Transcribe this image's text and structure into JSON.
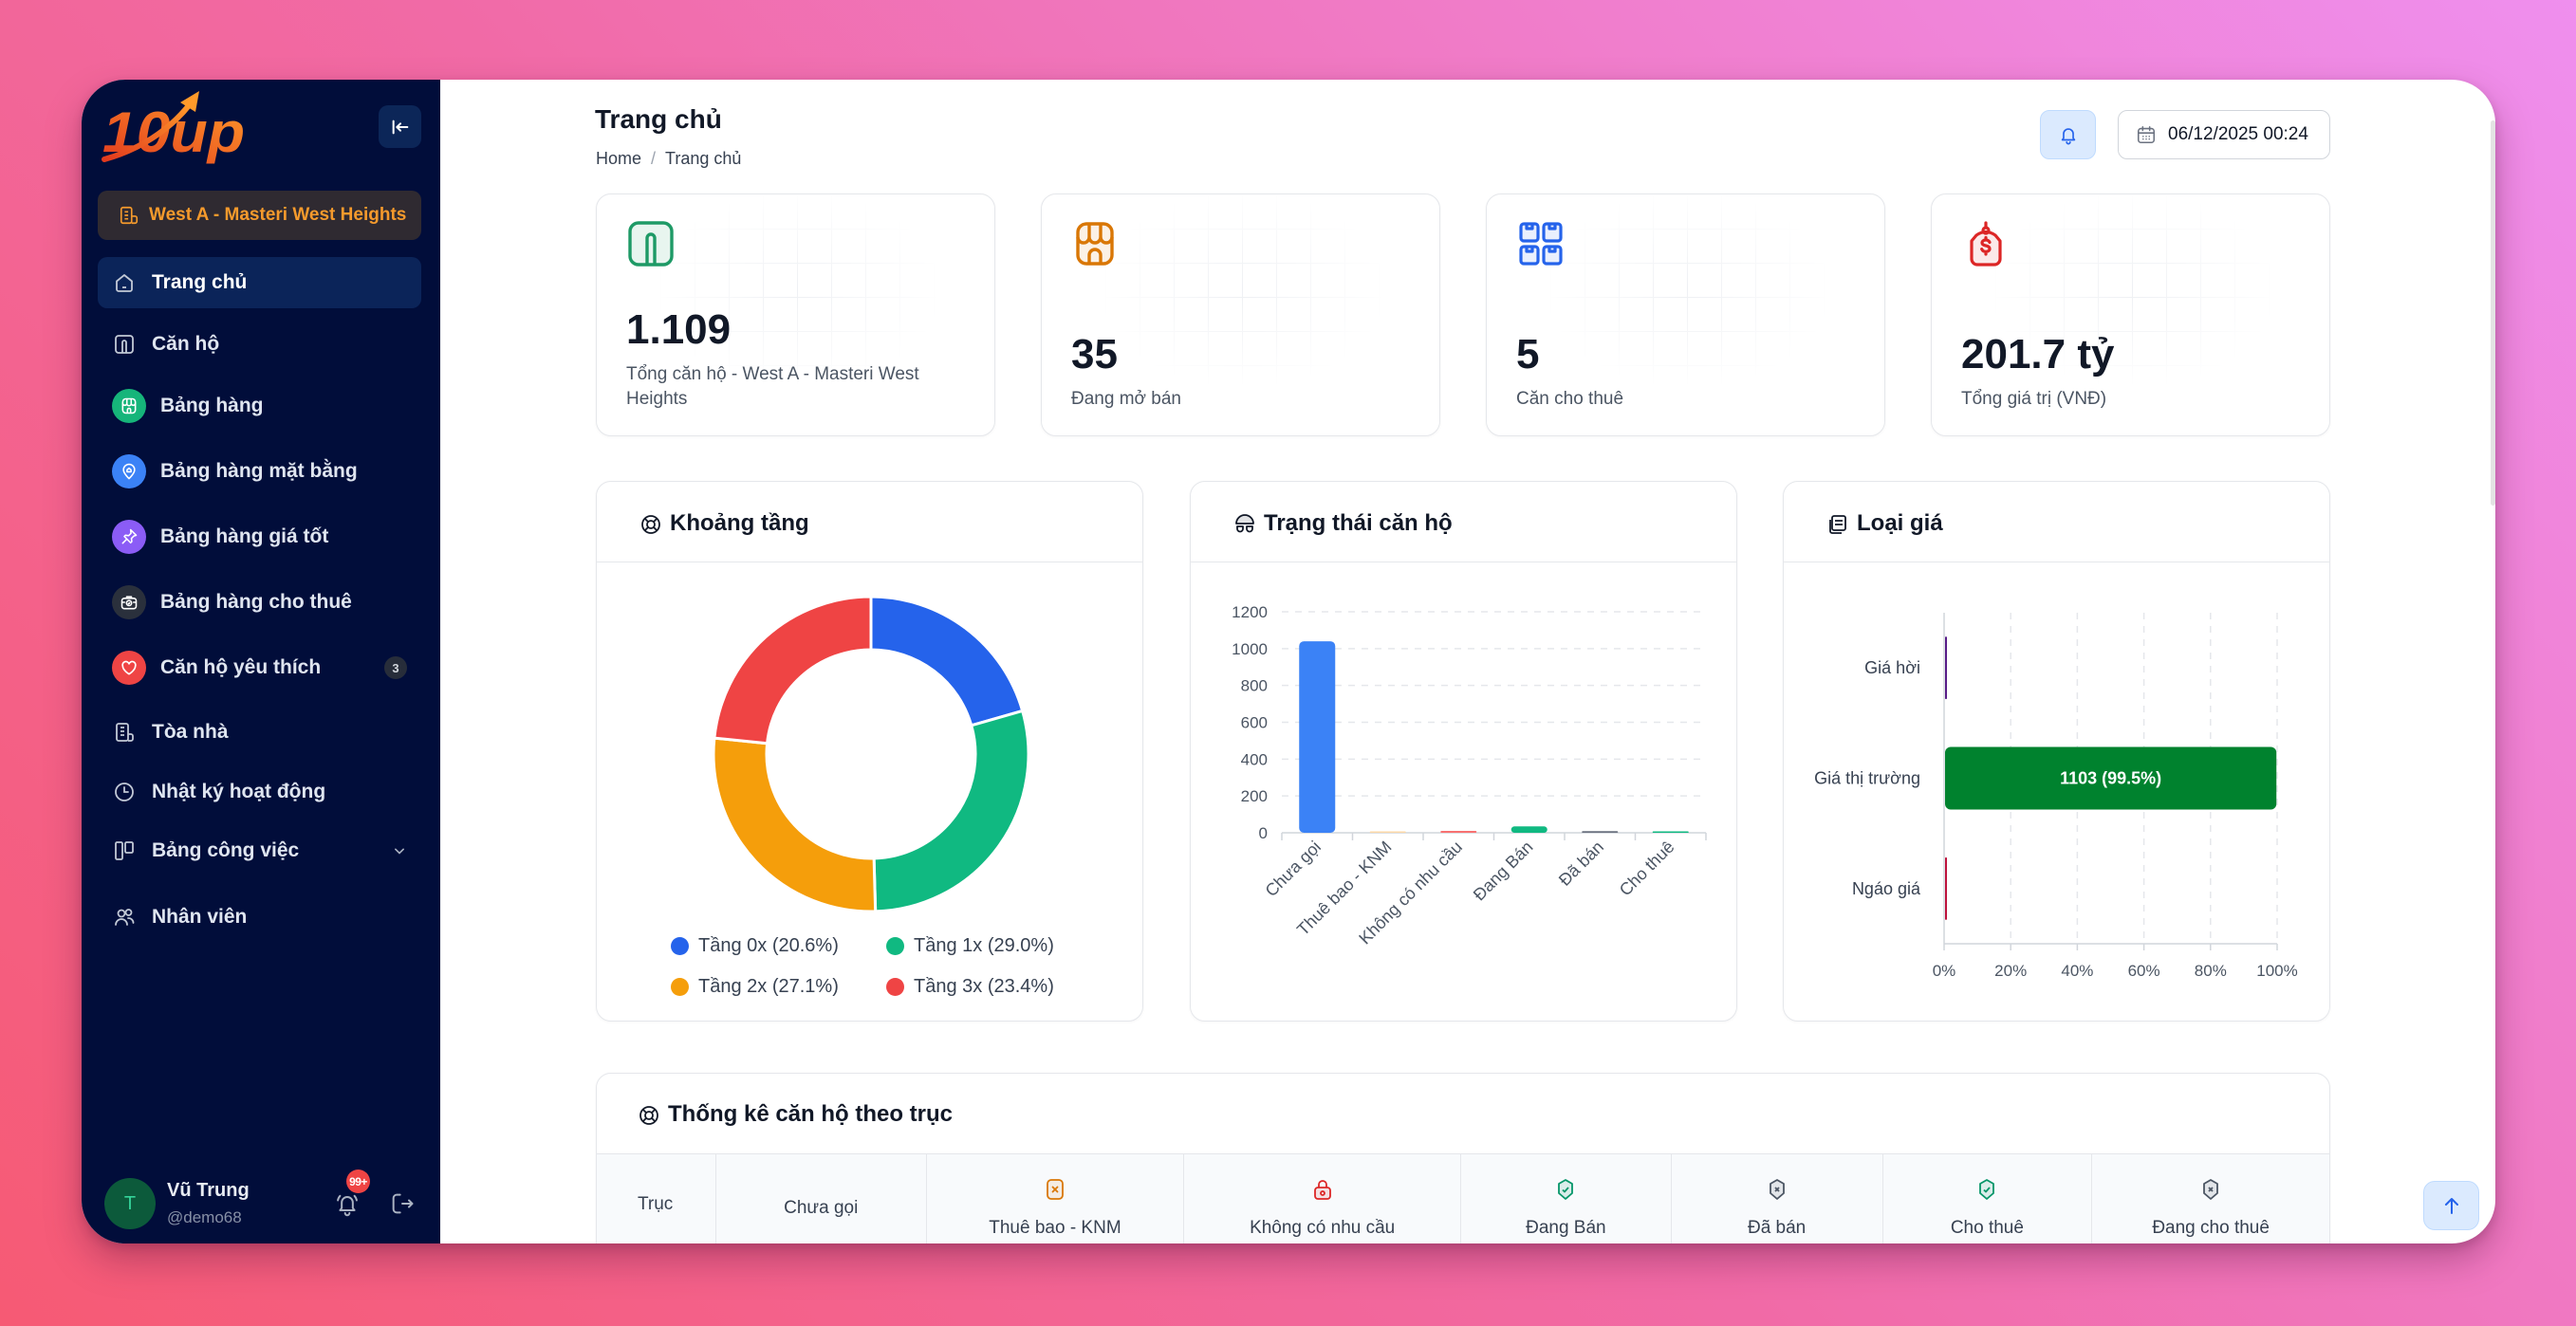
{
  "brand": {
    "logo_text": "10up"
  },
  "sidebar": {
    "project_label": "West A - Masteri West Heights",
    "items": [
      {
        "label": "Trang chủ",
        "icon": "home-icon",
        "active": true
      },
      {
        "label": "Căn hộ",
        "icon": "apartment-icon"
      },
      {
        "label": "Bảng hàng",
        "icon": "storefront-icon",
        "color": "#16b57a"
      },
      {
        "label": "Bảng hàng mặt bằng",
        "icon": "map-pin-home-icon",
        "color": "#3b82f6"
      },
      {
        "label": "Bảng hàng giá tốt",
        "icon": "pushpin-icon",
        "color": "#8b5cf6"
      },
      {
        "label": "Bảng hàng cho thuê",
        "icon": "briefcase-check-icon",
        "color": "#2a303c"
      },
      {
        "label": "Căn hộ yêu thích",
        "icon": "heart-icon",
        "color": "#ef4444",
        "badge": "3"
      },
      {
        "label": "Tòa nhà",
        "icon": "building-icon"
      },
      {
        "label": "Nhật ký hoạt động",
        "icon": "clock-icon"
      },
      {
        "label": "Bảng công việc",
        "icon": "kanban-icon",
        "expandable": true
      },
      {
        "label": "Nhân viên",
        "icon": "users-icon"
      }
    ],
    "user": {
      "initial": "T",
      "name": "Vũ Trung",
      "handle": "@demo68",
      "notifications_badge": "99+"
    }
  },
  "header": {
    "title": "Trang chủ",
    "breadcrumb": {
      "home": "Home",
      "separator": "/",
      "current": "Trang chủ"
    },
    "datetime": "06/12/2025 00:24"
  },
  "stats": [
    {
      "value": "1.109",
      "label": "Tổng căn hộ - West A - Masteri West Heights",
      "icon": "apartment-icon",
      "color": "#1e9a66"
    },
    {
      "value": "35",
      "label": "Đang mở bán",
      "icon": "storefront-icon",
      "color": "#d97706"
    },
    {
      "value": "5",
      "label": "Căn cho thuê",
      "icon": "boxes-icon",
      "color": "#2563eb"
    },
    {
      "value": "201.7 tỷ",
      "label": "Tổng giá trị (VNĐ)",
      "icon": "price-tag-icon",
      "color": "#dc2626"
    }
  ],
  "charts": {
    "floors": {
      "title": "Khoảng tầng",
      "legend": [
        {
          "label": "Tầng 0x (20.6%)",
          "color": "#2563eb"
        },
        {
          "label": "Tầng 1x (29.0%)",
          "color": "#10b981"
        },
        {
          "label": "Tầng 2x (27.1%)",
          "color": "#f59e0b"
        },
        {
          "label": "Tầng 3x (23.4%)",
          "color": "#ef4444"
        }
      ]
    },
    "status": {
      "title": "Trạng thái căn hộ"
    },
    "price_type": {
      "title": "Loại giá"
    }
  },
  "table": {
    "title": "Thống kê căn hộ theo trục",
    "columns": [
      {
        "label": "Trục"
      },
      {
        "label": "Chưa gọi"
      },
      {
        "label": "Thuê bao - KNM",
        "icon": "x-square-icon",
        "color": "#d97706"
      },
      {
        "label": "Không có nhu cầu",
        "icon": "lock-icon",
        "color": "#dc2626"
      },
      {
        "label": "Đang Bán",
        "icon": "shield-check-icon",
        "color": "#059669"
      },
      {
        "label": "Đã bán",
        "icon": "shield-x-icon",
        "color": "#4b5563"
      },
      {
        "label": "Cho thuê",
        "icon": "shield-check-icon",
        "color": "#059669"
      },
      {
        "label": "Đang cho thuê",
        "icon": "shield-x-icon",
        "color": "#4b5563"
      }
    ]
  },
  "colors": {
    "sidebar_bg": "#010d3a",
    "project_accent": "#f59a2c",
    "primary": "#2563eb"
  },
  "chart_data": [
    {
      "type": "pie",
      "donut": true,
      "title": "Khoảng tầng",
      "categories": [
        "Tầng 0x",
        "Tầng 1x",
        "Tầng 2x",
        "Tầng 3x"
      ],
      "values": [
        20.6,
        29.0,
        27.1,
        23.4
      ],
      "unit": "%",
      "colors": [
        "#2563eb",
        "#10b981",
        "#f59e0b",
        "#ef4444"
      ],
      "legend_position": "bottom"
    },
    {
      "type": "bar",
      "title": "Trạng thái căn hộ",
      "categories": [
        "Chưa gọi",
        "Thuê bao - KNM",
        "Không có nhu cầu",
        "Đang Bán",
        "Đã bán",
        "Cho thuê"
      ],
      "values": [
        1040,
        8,
        10,
        35,
        9,
        7
      ],
      "colors": [
        "#3b82f6",
        "#fcd9a8",
        "#f87171",
        "#10b981",
        "#6b7280",
        "#10b981"
      ],
      "xlabel": "",
      "ylabel": "",
      "ylim": [
        0,
        1200
      ],
      "yticks": [
        0,
        200,
        400,
        600,
        800,
        1000,
        1200
      ],
      "grid": true
    },
    {
      "type": "bar",
      "orientation": "horizontal",
      "title": "Loại giá",
      "categories": [
        "Giá hời",
        "Giá thị trường",
        "Ngáo giá"
      ],
      "values": [
        3,
        1103,
        3
      ],
      "percentages": [
        0.3,
        99.5,
        0.3
      ],
      "colors": [
        "#581c87",
        "#00822e",
        "#be123c"
      ],
      "annotations": [
        "",
        "1103 (99.5%)",
        ""
      ],
      "xlim": [
        0,
        100
      ],
      "xticks": [
        "0%",
        "20%",
        "40%",
        "60%",
        "80%",
        "100%"
      ],
      "grid": true
    }
  ]
}
